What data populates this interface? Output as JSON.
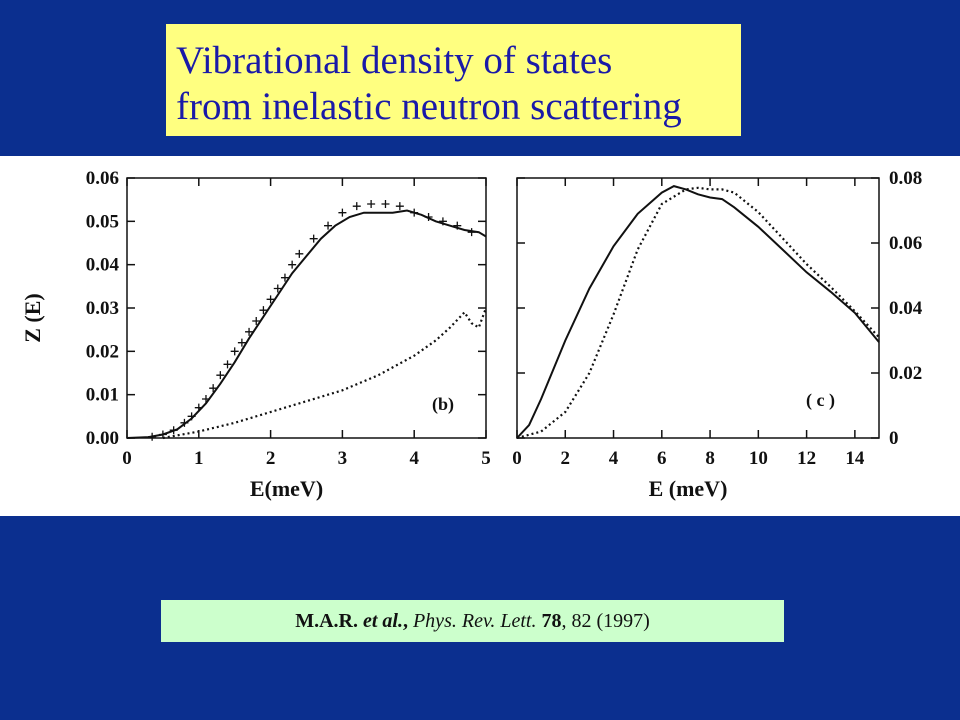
{
  "slide": {
    "title_line1": "Vibrational density of states",
    "title_line2": "from inelastic neutron scattering",
    "citation": {
      "authors": "M.A.R.",
      "etal": " et al.",
      "comma1": ", ",
      "journal": "Phys. Rev. Lett.",
      "space": " ",
      "volume": "78",
      "rest": ", 82 (1997)"
    },
    "colors": {
      "background": "#0b2f8f",
      "title_box": "#ffff80",
      "title_text": "#1a1aa8",
      "citation_box": "#ccffcc",
      "ink": "#111111"
    }
  },
  "chart_data": [
    {
      "type": "line",
      "panel_label": "(b)",
      "xlabel": "E(meV)",
      "ylabel": "Z (E)",
      "xlim": [
        0,
        5
      ],
      "ylim": [
        0,
        0.06
      ],
      "x_ticks": [
        "0",
        "1",
        "2",
        "3",
        "4",
        "5"
      ],
      "y_ticks": [
        "0.00",
        "0.01",
        "0.02",
        "0.03",
        "0.04",
        "0.05",
        "0.06"
      ],
      "series": [
        {
          "style": "solid",
          "x": [
            0,
            0.3,
            0.5,
            0.7,
            0.9,
            1.1,
            1.3,
            1.5,
            1.7,
            1.9,
            2.1,
            2.3,
            2.5,
            2.7,
            2.9,
            3.1,
            3.3,
            3.5,
            3.7,
            3.9,
            4.1,
            4.3,
            4.5,
            4.7,
            4.9,
            5.0
          ],
          "y": [
            0,
            0.0002,
            0.0008,
            0.002,
            0.0045,
            0.008,
            0.0125,
            0.0175,
            0.023,
            0.028,
            0.033,
            0.038,
            0.042,
            0.046,
            0.049,
            0.051,
            0.052,
            0.052,
            0.052,
            0.0525,
            0.0515,
            0.05,
            0.049,
            0.048,
            0.0475,
            0.0465
          ]
        },
        {
          "style": "markers",
          "marker": "+",
          "x": [
            0.35,
            0.5,
            0.65,
            0.8,
            0.9,
            1.0,
            1.1,
            1.2,
            1.3,
            1.4,
            1.5,
            1.6,
            1.7,
            1.8,
            1.9,
            2.0,
            2.1,
            2.2,
            2.3,
            2.4,
            2.6,
            2.8,
            3.0,
            3.2,
            3.4,
            3.6,
            3.8,
            4.0,
            4.2,
            4.4,
            4.6,
            4.8
          ],
          "y": [
            0.0003,
            0.0008,
            0.0018,
            0.0035,
            0.005,
            0.007,
            0.009,
            0.0115,
            0.0145,
            0.017,
            0.02,
            0.022,
            0.0245,
            0.027,
            0.0295,
            0.032,
            0.0345,
            0.037,
            0.04,
            0.0425,
            0.046,
            0.049,
            0.052,
            0.0535,
            0.054,
            0.054,
            0.0535,
            0.052,
            0.051,
            0.05,
            0.049,
            0.0475
          ]
        },
        {
          "style": "dotted",
          "x": [
            0.5,
            1.0,
            1.5,
            2.0,
            2.5,
            3.0,
            3.5,
            4.0,
            4.3,
            4.5,
            4.7,
            4.8,
            4.9,
            5.0
          ],
          "y": [
            0,
            0.0015,
            0.0035,
            0.006,
            0.0085,
            0.011,
            0.0145,
            0.019,
            0.0225,
            0.0255,
            0.029,
            0.0265,
            0.0255,
            0.03
          ]
        }
      ]
    },
    {
      "type": "line",
      "panel_label": "( c )",
      "xlabel": "E (meV)",
      "ylabel": "",
      "xlim": [
        0,
        15
      ],
      "ylim": [
        0,
        0.08
      ],
      "x_ticks": [
        "0",
        "2",
        "4",
        "6",
        "8",
        "10",
        "12",
        "14"
      ],
      "y_ticks": [
        "0",
        "0.02",
        "0.04",
        "0.06",
        "0.08"
      ],
      "series": [
        {
          "style": "solid",
          "x": [
            0,
            0.5,
            1,
            2,
            3,
            4,
            5,
            6,
            6.5,
            7,
            7.5,
            8,
            8.5,
            9,
            10,
            11,
            12,
            13,
            14,
            15
          ],
          "y": [
            0,
            0.004,
            0.012,
            0.03,
            0.046,
            0.059,
            0.069,
            0.0755,
            0.0775,
            0.0765,
            0.075,
            0.074,
            0.0735,
            0.071,
            0.065,
            0.058,
            0.051,
            0.045,
            0.0385,
            0.0295
          ]
        },
        {
          "style": "dotted",
          "x": [
            0,
            1,
            2,
            3,
            4,
            5,
            6,
            7,
            7.5,
            8,
            8.5,
            9,
            10,
            11,
            12,
            13,
            14,
            15
          ],
          "y": [
            0,
            0.002,
            0.008,
            0.02,
            0.038,
            0.058,
            0.072,
            0.0765,
            0.077,
            0.0765,
            0.0765,
            0.0755,
            0.0695,
            0.0615,
            0.0535,
            0.0465,
            0.039,
            0.031
          ]
        }
      ]
    }
  ]
}
